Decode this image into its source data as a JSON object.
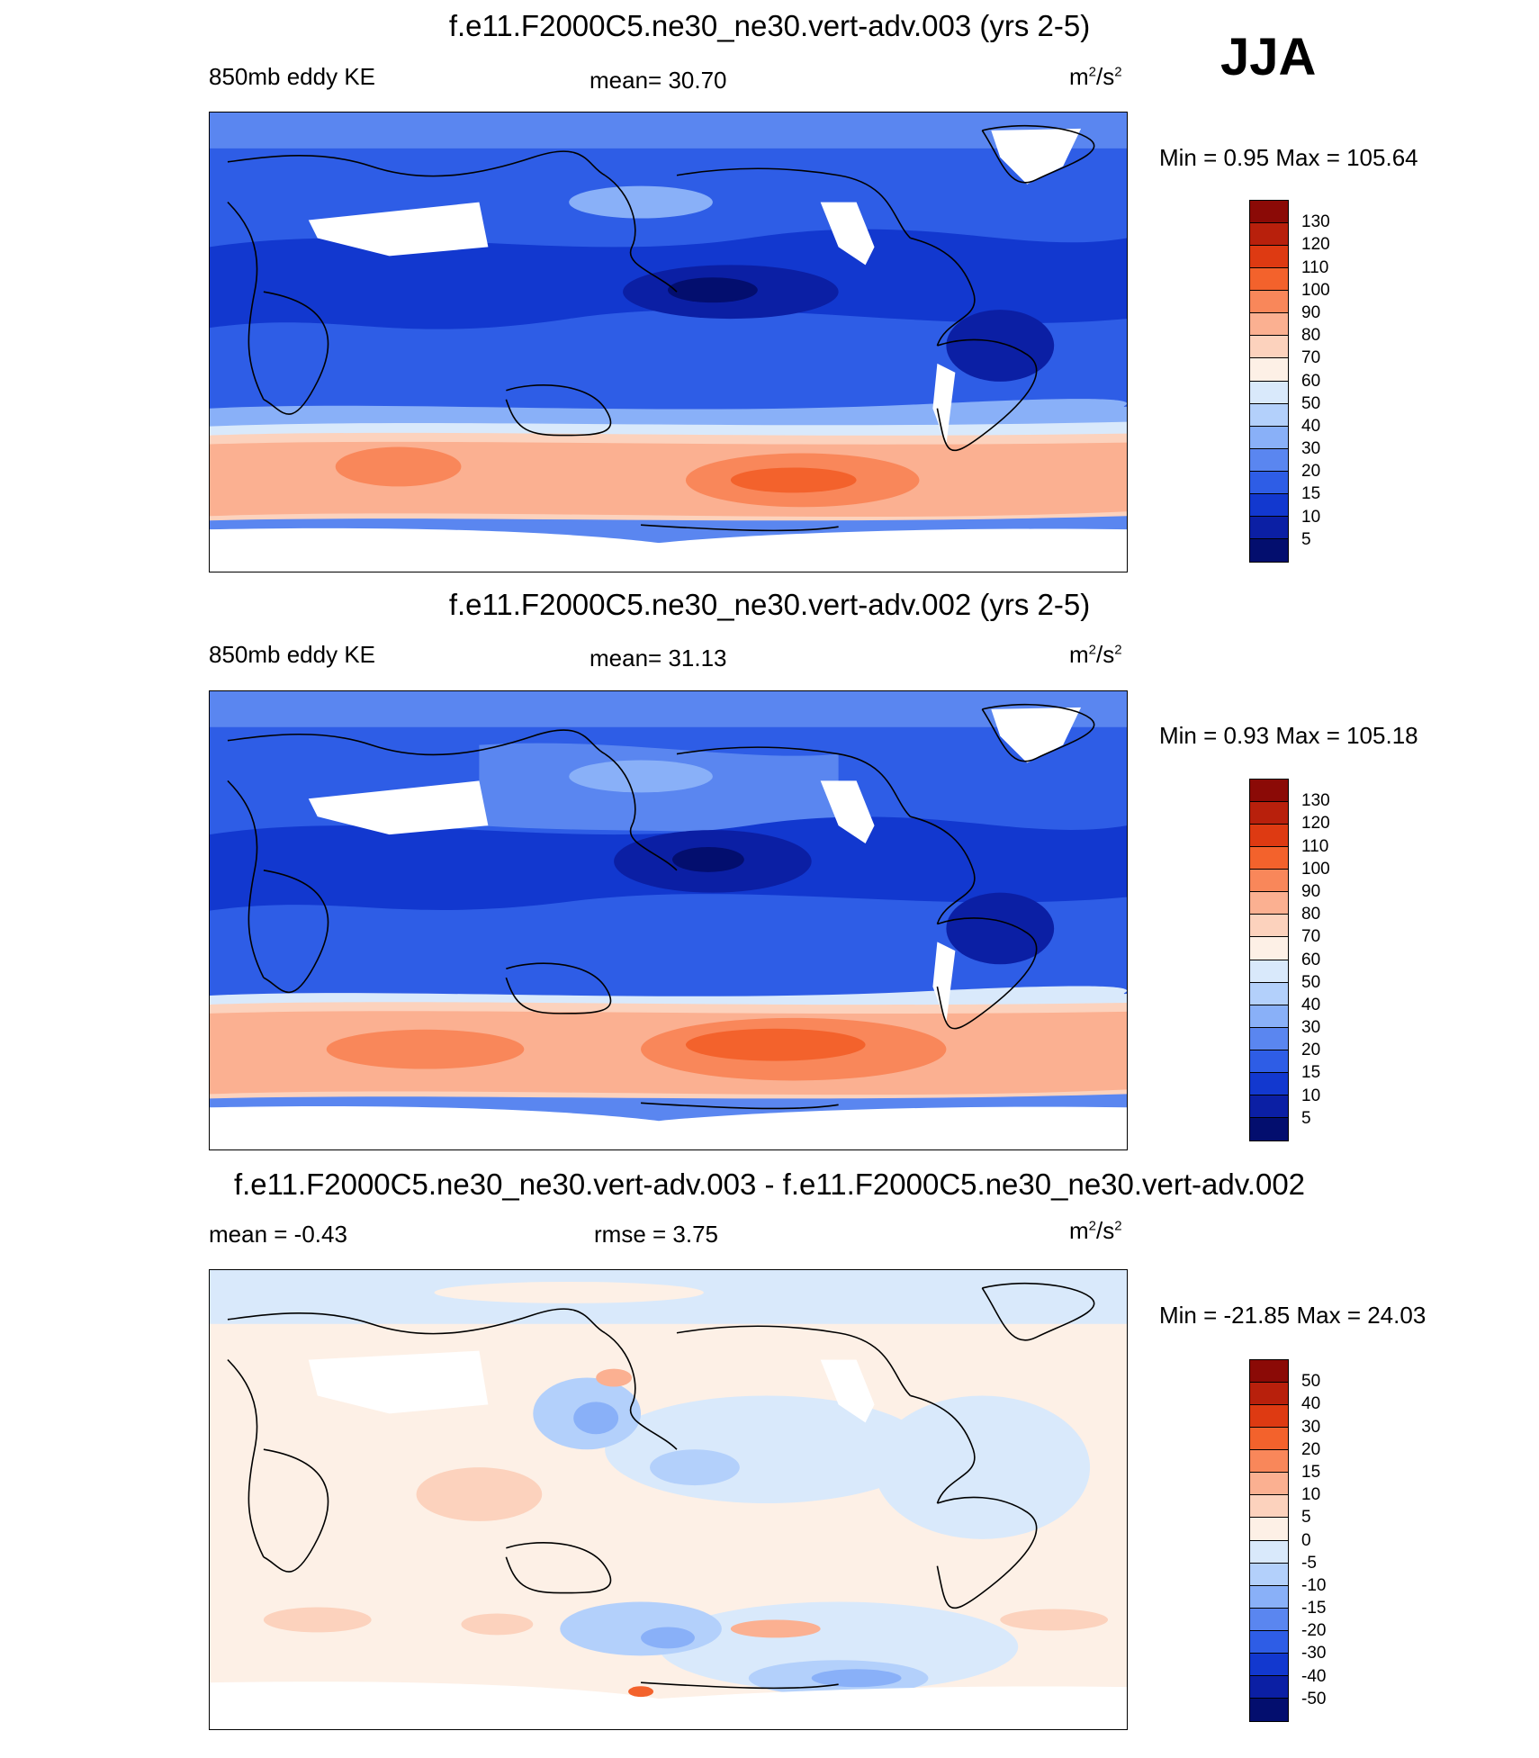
{
  "season": "JJA",
  "panels": [
    {
      "title": "f.e11.F2000C5.ne30_ne30.vert-adv.003 (yrs 2-5)",
      "left_label": "850mb eddy KE",
      "center_label": "mean=  30.70",
      "units": {
        "base": "m",
        "base_exp": "2",
        "slash": "/s",
        "exp": "2"
      },
      "minmax": "Min =    0.95 Max = 105.64",
      "colorbar_ticks": [
        "130",
        "120",
        "110",
        "100",
        "90",
        "80",
        "70",
        "60",
        "50",
        "40",
        "30",
        "20",
        "15",
        "10",
        "5"
      ],
      "colorbar_colors": [
        "#8b0a06",
        "#b8200c",
        "#de3a12",
        "#f3622c",
        "#f9875a",
        "#fbb091",
        "#fcd2bd",
        "#fdf0e6",
        "#d9e9fb",
        "#b3d0fb",
        "#89b0f8",
        "#5a86f0",
        "#2e5de6",
        "#1238cf",
        "#0b1fa4",
        "#030e6e"
      ]
    },
    {
      "title": "f.e11.F2000C5.ne30_ne30.vert-adv.002 (yrs 2-5)",
      "left_label": "850mb eddy KE",
      "center_label": "mean=  31.13",
      "units": {
        "base": "m",
        "base_exp": "2",
        "slash": "/s",
        "exp": "2"
      },
      "minmax": "Min =    0.93 Max = 105.18",
      "colorbar_ticks": [
        "130",
        "120",
        "110",
        "100",
        "90",
        "80",
        "70",
        "60",
        "50",
        "40",
        "30",
        "20",
        "15",
        "10",
        "5"
      ],
      "colorbar_colors": [
        "#8b0a06",
        "#b8200c",
        "#de3a12",
        "#f3622c",
        "#f9875a",
        "#fbb091",
        "#fcd2bd",
        "#fdf0e6",
        "#d9e9fb",
        "#b3d0fb",
        "#89b0f8",
        "#5a86f0",
        "#2e5de6",
        "#1238cf",
        "#0b1fa4",
        "#030e6e"
      ]
    },
    {
      "title": "f.e11.F2000C5.ne30_ne30.vert-adv.003 - f.e11.F2000C5.ne30_ne30.vert-adv.002",
      "left_label": "mean =  -0.43",
      "center_label": "rmse =    3.75",
      "units": {
        "base": "m",
        "base_exp": "2",
        "slash": "/s",
        "exp": "2"
      },
      "minmax": "Min = -21.85 Max =  24.03",
      "colorbar_ticks": [
        "50",
        "40",
        "30",
        "20",
        "15",
        "10",
        "5",
        "0",
        "-5",
        "-10",
        "-15",
        "-20",
        "-30",
        "-40",
        "-50"
      ],
      "colorbar_colors": [
        "#8b0a06",
        "#b8200c",
        "#de3a12",
        "#f3622c",
        "#f9875a",
        "#fbb091",
        "#fcd2bd",
        "#fdf0e6",
        "#d9e9fb",
        "#b3d0fb",
        "#89b0f8",
        "#5a86f0",
        "#2e5de6",
        "#1238cf",
        "#0b1fa4",
        "#030e6e"
      ]
    }
  ]
}
